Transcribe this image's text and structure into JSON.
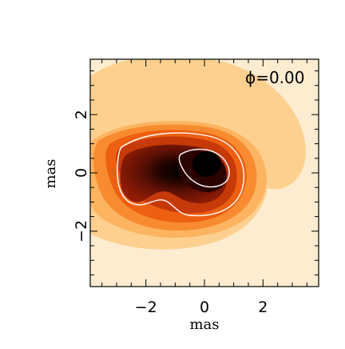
{
  "chart_data": {
    "type": "contour",
    "annotation": {
      "symbol": "ϕ",
      "text": "=0.00"
    },
    "xlabel": "mas",
    "ylabel": "mas",
    "xlim": [
      -3.9,
      3.9
    ],
    "ylim": [
      -3.9,
      3.9
    ],
    "xticks": [
      -2,
      0,
      2
    ],
    "yticks": [
      -2,
      0,
      2
    ],
    "xtick_labels": [
      "−2",
      "0",
      "2"
    ],
    "ytick_labels": [
      "−2",
      "0",
      "2"
    ],
    "colormap": [
      "#fdeccf",
      "#fdd08f",
      "#fcb461",
      "#f88b2f",
      "#ee5f12",
      "#c63a09",
      "#8f1c05",
      "#4a0a02",
      "#000000"
    ],
    "contour_line_color": "#ffffff",
    "peak": {
      "x": 0.1,
      "y": 0.3
    }
  }
}
